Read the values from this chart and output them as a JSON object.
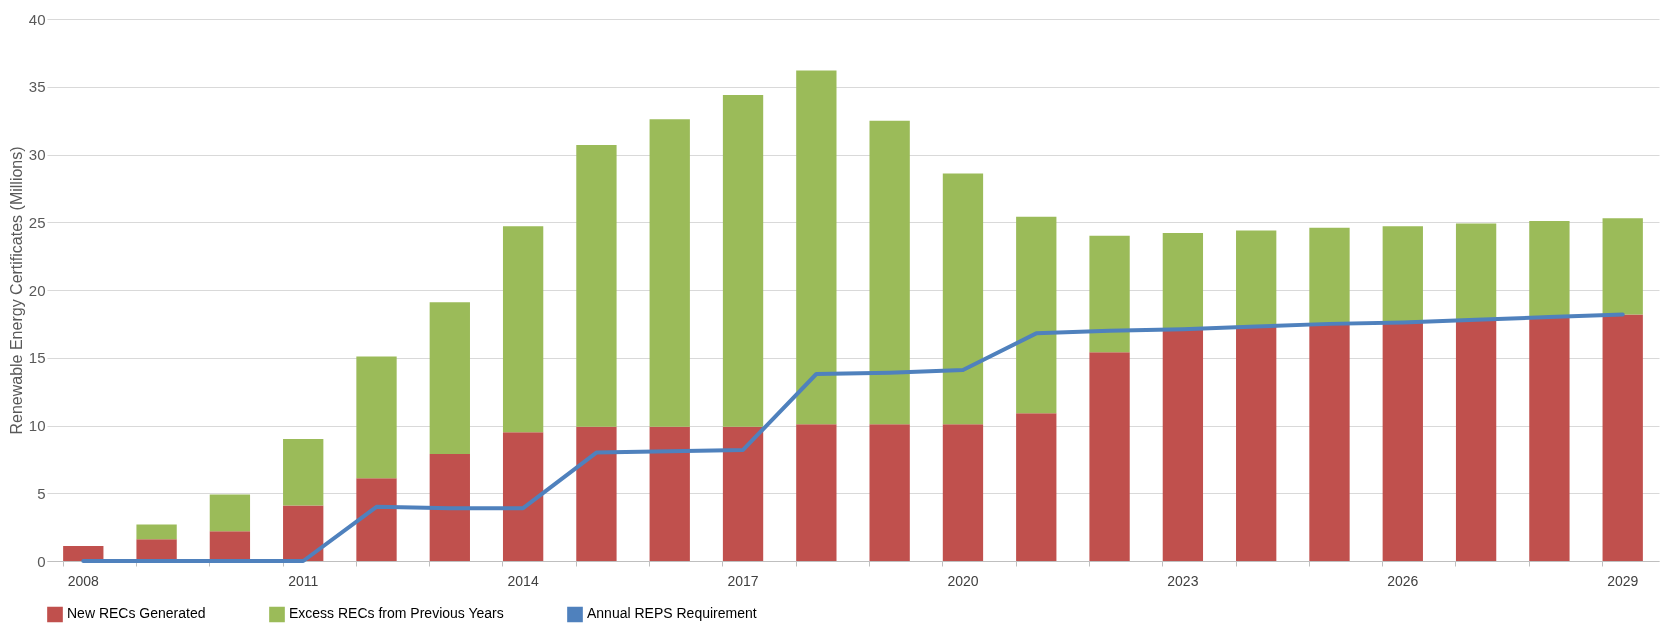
{
  "chart_data": {
    "type": "bar",
    "stacked": true,
    "ylabel": "Renewable Energy Certificates (Millions)",
    "categories": [
      "2008",
      null,
      null,
      "2011",
      null,
      null,
      "2014",
      null,
      null,
      "2017",
      null,
      null,
      "2020",
      null,
      null,
      "2023",
      null,
      null,
      "2026",
      null,
      null,
      "2029"
    ],
    "series": [
      {
        "name": "New RECs Generated",
        "color": "#c0504d",
        "values": [
          1.1,
          1.6,
          2.2,
          4.1,
          6.1,
          7.9,
          9.5,
          9.9,
          9.9,
          9.9,
          10.1,
          10.1,
          10.1,
          10.9,
          15.4,
          17.1,
          17.3,
          17.5,
          17.6,
          17.8,
          18.0,
          18.2
        ]
      },
      {
        "name": "Excess RECs from Previous Years",
        "color": "#9bbb59",
        "values": [
          0,
          1.1,
          2.7,
          4.9,
          9.0,
          11.2,
          15.2,
          20.8,
          22.7,
          24.5,
          26.1,
          22.4,
          18.5,
          14.5,
          8.6,
          7.1,
          7.1,
          7.1,
          7.1,
          7.1,
          7.1,
          7.1
        ]
      },
      {
        "name": "Annual REPS Requirement",
        "type": "line",
        "color": "#4f81bd",
        "values": [
          0,
          0,
          0,
          0,
          4.0,
          3.9,
          3.9,
          8.0,
          8.1,
          8.2,
          13.8,
          13.9,
          14.1,
          16.8,
          17.0,
          17.1,
          17.3,
          17.5,
          17.6,
          17.8,
          18.0,
          18.2
        ]
      }
    ],
    "ylim": [
      0,
      40
    ],
    "yticks": [
      0,
      5,
      10,
      15,
      20,
      25,
      30,
      35,
      40
    ],
    "grid": "y",
    "legend": "bottom"
  }
}
